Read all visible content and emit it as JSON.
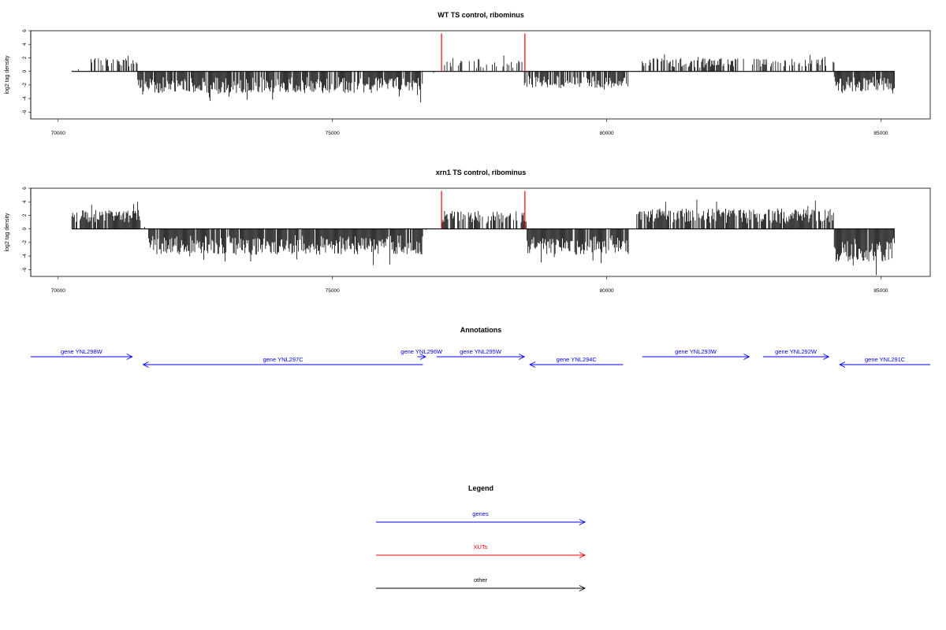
{
  "chart_data": [
    {
      "type": "bar",
      "title": "WT TS control, ribominus",
      "ylabel": "log2 tag density",
      "xlim": [
        69500,
        85900
      ],
      "ylim": [
        -7,
        6
      ],
      "xticks": [
        70000,
        75000,
        80000,
        85000
      ],
      "yticks": [
        -6,
        -4,
        -2,
        0,
        2,
        4,
        6
      ],
      "track_range": [
        70250,
        85250
      ],
      "xut_markers": [
        76990,
        78510
      ],
      "segments": [
        {
          "start": 70250,
          "end": 70600,
          "sign": 1,
          "amp": 0.4,
          "density": 0.05
        },
        {
          "start": 70600,
          "end": 71450,
          "sign": 1,
          "amp": 2.0,
          "density": 0.45
        },
        {
          "start": 71450,
          "end": 76650,
          "sign": -1,
          "amp": 3.2,
          "density": 0.9
        },
        {
          "start": 76650,
          "end": 76950,
          "sign": -1,
          "amp": 0.3,
          "density": 0.05
        },
        {
          "start": 77000,
          "end": 78500,
          "sign": 1,
          "amp": 1.8,
          "density": 0.35
        },
        {
          "start": 78500,
          "end": 80400,
          "sign": -1,
          "amp": 2.4,
          "density": 0.8
        },
        {
          "start": 80400,
          "end": 80650,
          "sign": 1,
          "amp": 0.3,
          "density": 0.05
        },
        {
          "start": 80650,
          "end": 84150,
          "sign": 1,
          "amp": 2.0,
          "density": 0.5
        },
        {
          "start": 84150,
          "end": 85250,
          "sign": -1,
          "amp": 3.0,
          "density": 0.95
        }
      ]
    },
    {
      "type": "bar",
      "title": "xrn1 TS control, ribominus",
      "ylabel": "log2 tag density",
      "xlim": [
        69500,
        85900
      ],
      "ylim": [
        -7,
        6
      ],
      "xticks": [
        70000,
        75000,
        80000,
        85000
      ],
      "yticks": [
        -6,
        -4,
        -2,
        0,
        2,
        4,
        6
      ],
      "track_range": [
        70250,
        85250
      ],
      "xut_markers": [
        76990,
        78510
      ],
      "segments": [
        {
          "start": 70250,
          "end": 71500,
          "sign": 1,
          "amp": 2.8,
          "density": 0.95
        },
        {
          "start": 71500,
          "end": 71650,
          "sign": 1,
          "amp": 0.3,
          "density": 0.1
        },
        {
          "start": 71650,
          "end": 76650,
          "sign": -1,
          "amp": 3.8,
          "density": 0.95
        },
        {
          "start": 76650,
          "end": 77000,
          "sign": -1,
          "amp": 0.4,
          "density": 0.1
        },
        {
          "start": 77000,
          "end": 78550,
          "sign": 1,
          "amp": 2.7,
          "density": 0.7
        },
        {
          "start": 78550,
          "end": 80400,
          "sign": -1,
          "amp": 3.8,
          "density": 0.95
        },
        {
          "start": 80400,
          "end": 80550,
          "sign": 1,
          "amp": 0.4,
          "density": 0.1
        },
        {
          "start": 80550,
          "end": 84150,
          "sign": 1,
          "amp": 3.0,
          "density": 0.85
        },
        {
          "start": 84150,
          "end": 85250,
          "sign": -1,
          "amp": 4.8,
          "density": 0.98
        }
      ]
    }
  ],
  "annotations": {
    "title": "Annotations",
    "genes": [
      {
        "label": "gene YNL298W",
        "start": 69500,
        "end": 71350,
        "strand": "+"
      },
      {
        "label": "gene YNL297C",
        "start": 71550,
        "end": 76650,
        "strand": "-"
      },
      {
        "label": "gene YNL296W",
        "start": 76550,
        "end": 76700,
        "strand": "+"
      },
      {
        "label": "gene YNL295W",
        "start": 76900,
        "end": 78500,
        "strand": "+"
      },
      {
        "label": "gene YNL294C",
        "start": 78600,
        "end": 80300,
        "strand": "-"
      },
      {
        "label": "gene YNL293W",
        "start": 80650,
        "end": 82600,
        "strand": "+"
      },
      {
        "label": "gene YNL292W",
        "start": 82850,
        "end": 84050,
        "strand": "+"
      },
      {
        "label": "gene YNL291C",
        "start": 84250,
        "end": 85900,
        "strand": "-"
      }
    ]
  },
  "legend": {
    "title": "Legend",
    "items": [
      {
        "label": "genes",
        "color": "#0000ff"
      },
      {
        "label": "XUTs",
        "color": "#ff0000"
      },
      {
        "label": "other",
        "color": "#000000"
      }
    ]
  },
  "colors": {
    "gene": "#0000ff",
    "xut": "#ff0000",
    "data": "#000000"
  }
}
